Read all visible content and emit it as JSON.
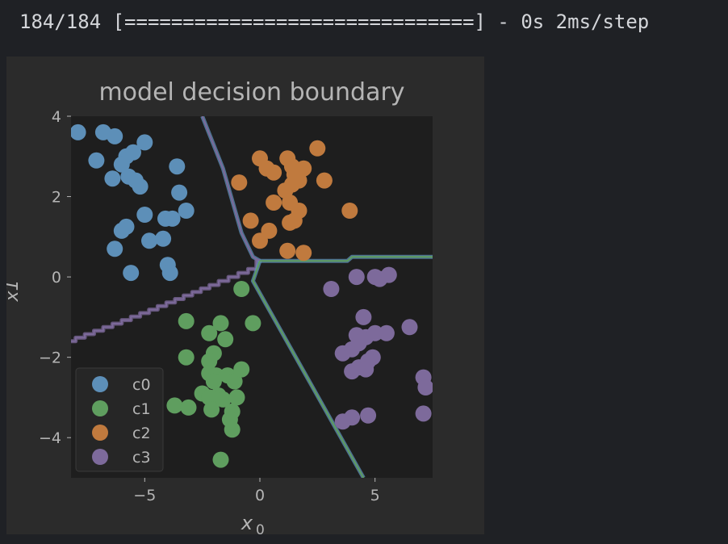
{
  "console": {
    "progress_text": "184/184 [==============================] - 0s 2ms/step",
    "progress": 1.0
  },
  "chart_data": {
    "type": "scatter",
    "title": "model decision boundary",
    "xlabel": "x0",
    "xlabel_main": "x",
    "xlabel_sub": "0",
    "ylabel": "x1",
    "xlim": [
      -8.2,
      7.5
    ],
    "ylim": [
      -5,
      4
    ],
    "xticks": [
      -5,
      0,
      5
    ],
    "yticks": [
      -4,
      -2,
      0,
      2,
      4
    ],
    "grid": false,
    "legend_position": "bottom-left",
    "colors": {
      "plot_bg": "#1e1e1e",
      "fig_bg": "#2b2b2b",
      "text": "#b5b5b5",
      "c0": "#5d8fb8",
      "c1": "#5f9e5f",
      "c2": "#c07a3e",
      "c3": "#7d6a9b"
    },
    "series": [
      {
        "name": "c0",
        "color": "#5d8fb8",
        "points": [
          [
            -7.9,
            3.6
          ],
          [
            -6.8,
            3.6
          ],
          [
            -6.3,
            3.5
          ],
          [
            -5.0,
            3.35
          ],
          [
            -7.1,
            2.9
          ],
          [
            -5.8,
            3.0
          ],
          [
            -5.5,
            3.1
          ],
          [
            -6.0,
            2.8
          ],
          [
            -3.6,
            2.75
          ],
          [
            -6.4,
            2.45
          ],
          [
            -5.7,
            2.5
          ],
          [
            -5.4,
            2.4
          ],
          [
            -5.2,
            2.25
          ],
          [
            -3.5,
            2.1
          ],
          [
            -5.0,
            1.55
          ],
          [
            -4.1,
            1.45
          ],
          [
            -3.8,
            1.45
          ],
          [
            -3.2,
            1.65
          ],
          [
            -5.8,
            1.25
          ],
          [
            -6.0,
            1.15
          ],
          [
            -4.8,
            0.9
          ],
          [
            -4.2,
            0.95
          ],
          [
            -6.3,
            0.7
          ],
          [
            -4.0,
            0.3
          ],
          [
            -3.9,
            0.1
          ],
          [
            -5.6,
            0.1
          ]
        ]
      },
      {
        "name": "c1",
        "color": "#5f9e5f",
        "points": [
          [
            -0.8,
            -0.3
          ],
          [
            -3.2,
            -1.1
          ],
          [
            -1.7,
            -1.15
          ],
          [
            -0.3,
            -1.15
          ],
          [
            -2.2,
            -1.4
          ],
          [
            -1.5,
            -1.55
          ],
          [
            -3.2,
            -2.0
          ],
          [
            -2.0,
            -1.9
          ],
          [
            -2.2,
            -2.1
          ],
          [
            -2.2,
            -2.4
          ],
          [
            -1.9,
            -2.45
          ],
          [
            -1.4,
            -2.45
          ],
          [
            -2.0,
            -2.6
          ],
          [
            -1.1,
            -2.6
          ],
          [
            -0.8,
            -2.3
          ],
          [
            -2.5,
            -2.9
          ],
          [
            -1.8,
            -2.95
          ],
          [
            -2.2,
            -3.0
          ],
          [
            -1.6,
            -3.05
          ],
          [
            -1.0,
            -3.0
          ],
          [
            -3.7,
            -3.2
          ],
          [
            -3.1,
            -3.25
          ],
          [
            -2.1,
            -3.3
          ],
          [
            -1.2,
            -3.35
          ],
          [
            -1.3,
            -3.55
          ],
          [
            -1.2,
            -3.8
          ],
          [
            -1.7,
            -4.55
          ]
        ]
      },
      {
        "name": "c2",
        "color": "#c07a3e",
        "points": [
          [
            2.5,
            3.2
          ],
          [
            0.0,
            2.95
          ],
          [
            1.2,
            2.95
          ],
          [
            0.3,
            2.7
          ],
          [
            0.6,
            2.6
          ],
          [
            1.4,
            2.75
          ],
          [
            1.9,
            2.7
          ],
          [
            1.5,
            2.55
          ],
          [
            1.7,
            2.4
          ],
          [
            2.8,
            2.4
          ],
          [
            -0.9,
            2.35
          ],
          [
            1.4,
            2.3
          ],
          [
            1.1,
            2.15
          ],
          [
            0.6,
            1.85
          ],
          [
            1.3,
            1.85
          ],
          [
            3.9,
            1.65
          ],
          [
            1.7,
            1.65
          ],
          [
            -0.4,
            1.4
          ],
          [
            1.5,
            1.4
          ],
          [
            0.4,
            1.15
          ],
          [
            1.3,
            1.35
          ],
          [
            0.0,
            0.9
          ],
          [
            1.2,
            0.65
          ],
          [
            1.9,
            0.6
          ]
        ]
      },
      {
        "name": "c3",
        "color": "#7d6a9b",
        "points": [
          [
            4.2,
            0.0
          ],
          [
            5.0,
            0.0
          ],
          [
            5.2,
            -0.05
          ],
          [
            5.6,
            0.05
          ],
          [
            3.1,
            -0.3
          ],
          [
            4.5,
            -1.0
          ],
          [
            4.2,
            -1.45
          ],
          [
            4.6,
            -1.5
          ],
          [
            5.0,
            -1.4
          ],
          [
            5.5,
            -1.4
          ],
          [
            6.5,
            -1.25
          ],
          [
            3.6,
            -1.9
          ],
          [
            4.0,
            -1.8
          ],
          [
            4.3,
            -1.65
          ],
          [
            4.9,
            -2.0
          ],
          [
            4.3,
            -2.25
          ],
          [
            4.7,
            -2.1
          ],
          [
            4.6,
            -2.3
          ],
          [
            4.0,
            -2.35
          ],
          [
            7.1,
            -2.5
          ],
          [
            7.2,
            -2.75
          ],
          [
            4.7,
            -3.45
          ],
          [
            4.0,
            -3.5
          ],
          [
            7.1,
            -3.4
          ],
          [
            3.6,
            -3.6
          ]
        ]
      }
    ],
    "boundaries": [
      {
        "name": "c0-c2",
        "colors": [
          "#5d8fb8",
          "#7d6a9b"
        ],
        "points": [
          [
            -2.5,
            4.0
          ],
          [
            -1.6,
            2.7
          ],
          [
            -0.8,
            1.1
          ],
          [
            -0.3,
            0.5
          ],
          [
            0.0,
            0.4
          ]
        ]
      },
      {
        "name": "c0-c1",
        "colors": [
          "#7d6a9b",
          "#7d6a9b"
        ],
        "step": true,
        "points": [
          [
            -8.2,
            -1.6
          ],
          [
            -5.0,
            -0.9
          ],
          [
            -2.0,
            -0.2
          ],
          [
            -0.3,
            0.2
          ],
          [
            0.0,
            0.4
          ]
        ]
      },
      {
        "name": "c2-c3",
        "colors": [
          "#5d8fb8",
          "#5f9e5f"
        ],
        "points": [
          [
            0.0,
            0.4
          ],
          [
            3.8,
            0.4
          ],
          [
            4.0,
            0.5
          ],
          [
            7.5,
            0.5
          ]
        ]
      },
      {
        "name": "c1-c3",
        "colors": [
          "#5d8fb8",
          "#5f9e5f"
        ],
        "points": [
          [
            0.0,
            0.4
          ],
          [
            -0.3,
            -0.1
          ],
          [
            4.5,
            -5.0
          ]
        ]
      }
    ]
  }
}
